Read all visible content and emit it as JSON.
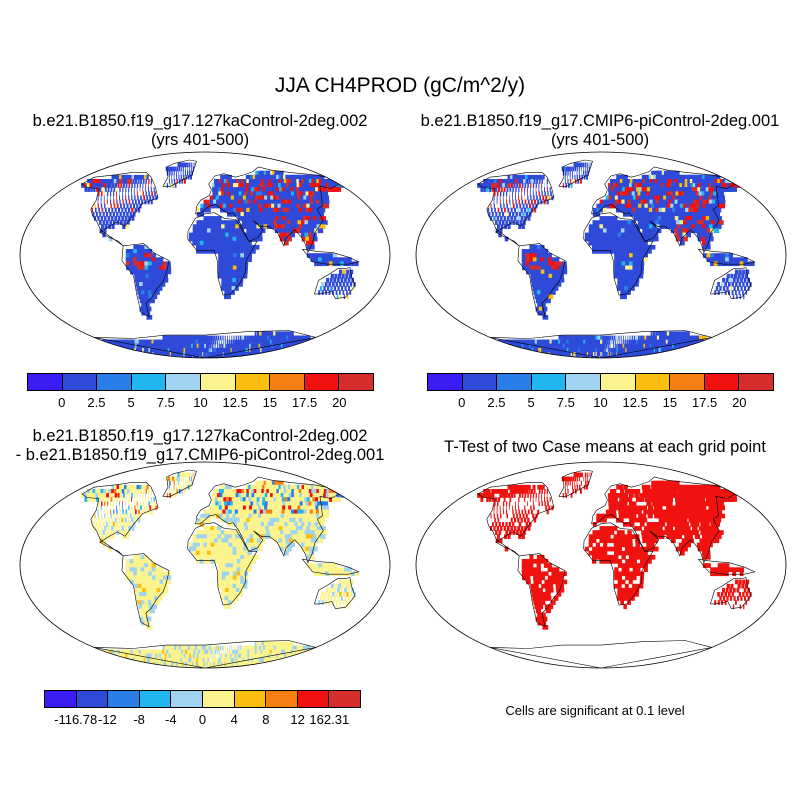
{
  "title": "JJA CH4PROD (gC/m^2/y)",
  "panels": [
    {
      "line1": "b.e21.B1850.f19_g17.127kaControl-2deg.002",
      "line2": "(yrs 401-500)"
    },
    {
      "line1": "b.e21.B1850.f19_g17.CMIP6-piControl-2deg.001",
      "line2": "(yrs 401-500)"
    },
    {
      "line1": "b.e21.B1850.f19_g17.127kaControl-2deg.002",
      "line2": "- b.e21.B1850.f19_g17.CMIP6-piControl-2deg.001"
    },
    {
      "line1": "T-Test of two Case means at each grid point",
      "line2": ""
    }
  ],
  "colorbar_top": {
    "colors": [
      "#3a1df5",
      "#2f4ad8",
      "#2b7de8",
      "#22b5ee",
      "#9fd3f0",
      "#fbf38e",
      "#fbbd0e",
      "#f77e11",
      "#f0120f",
      "#d52c2c"
    ],
    "labels": [
      "0",
      "2.5",
      "5",
      "7.5",
      "10",
      "12.5",
      "15",
      "17.5",
      "20"
    ]
  },
  "colorbar_diff": {
    "colors": [
      "#3a1df5",
      "#2f4ad8",
      "#2b7de8",
      "#22b5ee",
      "#9fd3f0",
      "#fbf38e",
      "#fbbd0e",
      "#f77e11",
      "#f0120f",
      "#d52c2c"
    ],
    "labels": [
      "-116.78",
      "-12",
      "-8",
      "-4",
      "0",
      "4",
      "8",
      "12",
      "162.31"
    ]
  },
  "significance_note": "Cells are significant at 0.1 level",
  "map_colors": {
    "land_base_mean": "#2f4ad8",
    "land_base_diff": "#fbf38e",
    "significant": "#f0120f"
  }
}
